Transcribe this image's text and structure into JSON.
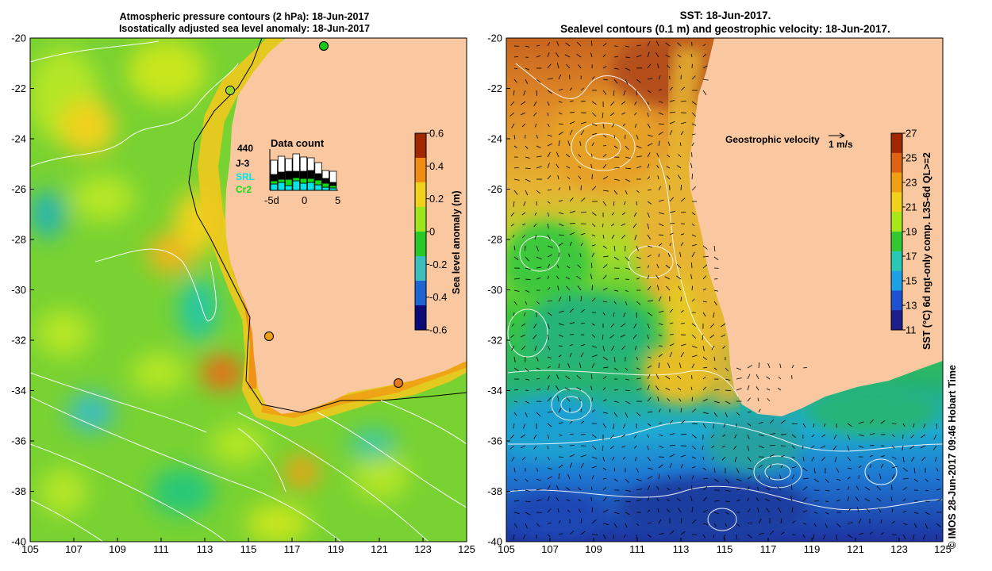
{
  "left_panel": {
    "title_line1": "Atmospheric pressure contours (2 hPa): 18-Jun-2017",
    "title_line2": "Isostatically adjusted sea level anomaly: 18-Jun-2017",
    "colorbar": {
      "label": "Sea level anomaly (m)",
      "ticks": [
        "0.6",
        "0.4",
        "0.2",
        "0",
        "-0.2",
        "-0.4",
        "-0.6"
      ],
      "colors": [
        "#0a0a78",
        "#1e64d2",
        "#3cbebe",
        "#28c828",
        "#9be61e",
        "#f0d21e",
        "#f08c14",
        "#a02800"
      ]
    },
    "data_count": {
      "title": "Data count",
      "max_label": "440",
      "series": [
        {
          "name": "J-3",
          "color": "#000000"
        },
        {
          "name": "SRL",
          "color": "#00e6e6"
        },
        {
          "name": "Cr2",
          "color": "#14dc14"
        }
      ],
      "x_ticks": [
        "-5d",
        "0",
        "5"
      ]
    }
  },
  "right_panel": {
    "title_line1": "SST: 18-Jun-2017.",
    "title_line2": "Sealevel contours (0.1 m) and geostrophic velocity: 18-Jun-2017.",
    "velocity_legend": {
      "label": "Geostrophic velocity",
      "unit": "1 m/s"
    },
    "colorbar": {
      "label": "SST (°C) 6d ngt-only comp. L3S-6d QL>=2",
      "ticks": [
        "27",
        "25",
        "23",
        "21",
        "19",
        "17",
        "15",
        "13",
        "11"
      ],
      "colors": [
        "#1e1e8c",
        "#1e50d2",
        "#1ea0e6",
        "#28c8b4",
        "#32c832",
        "#aae61e",
        "#f0d21e",
        "#f0a014",
        "#dc6414",
        "#a02800"
      ]
    }
  },
  "axes": {
    "lon_ticks": [
      "105",
      "107",
      "109",
      "111",
      "113",
      "115",
      "117",
      "119",
      "121",
      "123",
      "125"
    ],
    "lat_ticks": [
      "-20",
      "-22",
      "-24",
      "-26",
      "-28",
      "-30",
      "-32",
      "-34",
      "-36",
      "-38",
      "-40"
    ]
  },
  "credit": "© IMOS 28-Jun-2017 09:46 Hobart Time",
  "colors": {
    "land": "#fac8a0",
    "coast": "#000000",
    "contour": "#ffffff"
  }
}
